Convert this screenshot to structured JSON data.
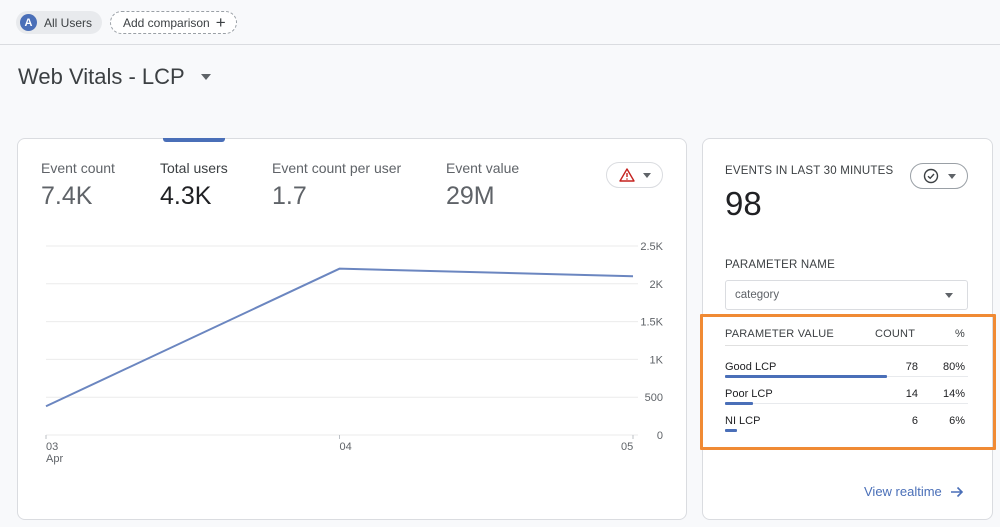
{
  "filters": {
    "segment_avatar": "A",
    "segment_label": "All Users",
    "add_comparison_label": "Add comparison"
  },
  "page_title": "Web Vitals - LCP",
  "metrics": [
    {
      "label": "Event count",
      "value": "7.4K",
      "active": false
    },
    {
      "label": "Total users",
      "value": "4.3K",
      "active": true
    },
    {
      "label": "Event count per user",
      "value": "1.7",
      "active": false
    },
    {
      "label": "Event value",
      "value": "29M",
      "active": false
    }
  ],
  "chart_data": {
    "type": "line",
    "x": [
      "03 Apr",
      "04",
      "05"
    ],
    "x_tick_labels": [
      "03",
      "04",
      "05"
    ],
    "x_sublabel": "Apr",
    "series": [
      {
        "values": [
          380,
          2200,
          2100
        ]
      }
    ],
    "ylim": [
      0,
      2500
    ],
    "y_ticks": [
      "2.5K",
      "2K",
      "1.5K",
      "1K",
      "500",
      "0"
    ],
    "y_tick_values": [
      2500,
      2000,
      1500,
      1000,
      500,
      0
    ],
    "grid": true,
    "line_color": "#6b86c0"
  },
  "realtime": {
    "title": "EVENTS IN LAST 30 MINUTES",
    "value": "98",
    "parameter_name_label": "PARAMETER NAME",
    "parameter_name_value": "category",
    "table": {
      "headers": [
        "PARAMETER VALUE",
        "COUNT",
        "%"
      ],
      "rows": [
        {
          "name": "Good LCP",
          "count": "78",
          "pct": "80%",
          "share": 0.8
        },
        {
          "name": "Poor LCP",
          "count": "14",
          "pct": "14%",
          "share": 0.14
        },
        {
          "name": "NI LCP",
          "count": "6",
          "pct": "6%",
          "share": 0.06
        }
      ]
    },
    "view_link": "View realtime"
  },
  "colors": {
    "accent": "#4a6fb8",
    "highlight": "#f08a34"
  }
}
